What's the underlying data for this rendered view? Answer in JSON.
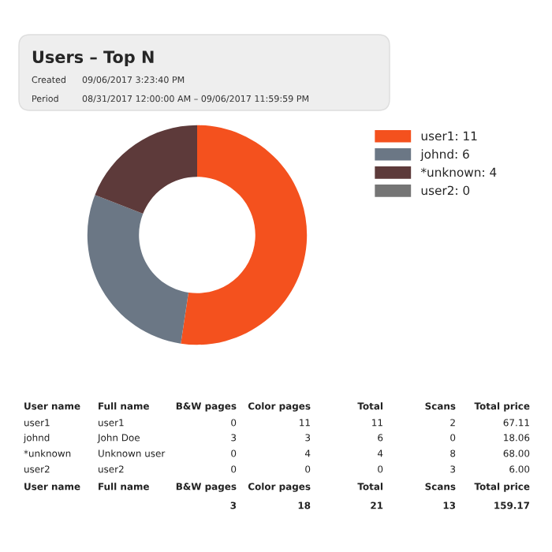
{
  "chart_data": {
    "type": "donut",
    "title": "Users – Top N",
    "categories": [
      "user1: 11",
      "johnd: 6",
      "*unknown: 4",
      "user2: 0"
    ],
    "values": [
      11,
      6,
      4,
      0
    ],
    "colors": [
      "#f4511e",
      "#6b7785",
      "#5d3a3a",
      "#757575"
    ],
    "legend": "right",
    "annotations": [
      "Created",
      "09/06/2017 3:23:40 PM",
      "Period",
      "08/31/2017 12:00:00 AM – 09/06/2017 11:59:59 PM",
      "User name",
      "Full name",
      "B&W pages",
      "Color pages",
      "Total",
      "Scans",
      "Total price",
      "user1",
      "user1",
      "0",
      "11",
      "11",
      "2",
      "67.11",
      "johnd",
      "John Doe",
      "3",
      "3",
      "6",
      "0",
      "18.06",
      "*unknown",
      "Unknown user",
      "0",
      "4",
      "4",
      "8",
      "68.00",
      "user2",
      "user2",
      "0",
      "0",
      "0",
      "3",
      "6.00",
      "User name",
      "Full name",
      "B&W pages",
      "Color pages",
      "Total",
      "Scans",
      "Total price",
      "3",
      "18",
      "21",
      "13",
      "159.17"
    ]
  }
}
